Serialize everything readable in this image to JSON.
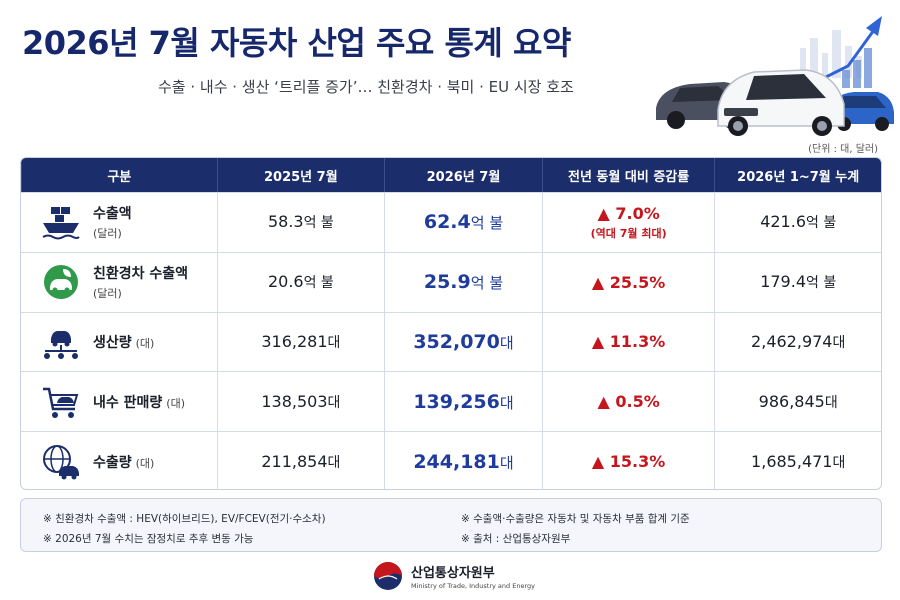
{
  "title": "2026년 7월 자동차 산업 주요 통계 요약",
  "subtitle": "수출 · 내수 · 생산 ‘트리플 증가’… 친환경차 · 북미 · EU 시장 호조",
  "unit_note": "(단위 : 대, 달러)",
  "table": {
    "headers": [
      "구분",
      "2025년 7월",
      "2026년 7월",
      "전년 동월 대비 증감률",
      "2026년 1~7월 누계"
    ],
    "rows": [
      {
        "icon": "ship-icon",
        "label": "수출액",
        "sub": "(달러)",
        "prev": "58.3",
        "prev_unit": "억 불",
        "curr": "62.4",
        "curr_unit": "억 불",
        "change": "▲ 7.0%",
        "change_note": "(역대 7월 최대)",
        "cum": "421.6",
        "cum_unit": "억 불"
      },
      {
        "icon": "eco-car-icon",
        "label": "친환경차 수출액",
        "sub": "(달러)",
        "prev": "20.6",
        "prev_unit": "억 불",
        "curr": "25.9",
        "curr_unit": "억 불",
        "change": "▲ 25.5%",
        "change_note": "",
        "cum": "179.4",
        "cum_unit": "억 불"
      },
      {
        "icon": "production-icon",
        "label": "생산량",
        "sub": "(대)",
        "prev": "316,281",
        "prev_unit": "대",
        "curr": "352,070",
        "curr_unit": "대",
        "change": "▲ 11.3%",
        "change_note": "",
        "cum": "2,462,974",
        "cum_unit": "대"
      },
      {
        "icon": "cart-car-icon",
        "label": "내수 판매량",
        "sub": "(대)",
        "prev": "138,503",
        "prev_unit": "대",
        "curr": "139,256",
        "curr_unit": "대",
        "change": "▲ 0.5%",
        "change_note": "",
        "cum": "986,845",
        "cum_unit": "대"
      },
      {
        "icon": "globe-car-icon",
        "label": "수출량",
        "sub": "(대)",
        "prev": "211,854",
        "prev_unit": "대",
        "curr": "244,181",
        "curr_unit": "대",
        "change": "▲ 15.3%",
        "change_note": "",
        "cum": "1,685,471",
        "cum_unit": "대"
      }
    ]
  },
  "notes": [
    "※  친환경차 수출액 : HEV(하이브리드), EV/FCEV(전기·수소차)",
    "※  수출액·수출량은 자동차 및 자동차 부품 합계 기준",
    "※  2026년 7월 수치는 잠정치로 추후 변동 가능",
    "※  출처 : 산업통상자원부"
  ],
  "footer": {
    "name": "산업통상자원부",
    "name_en": "Ministry of Trade, Industry and Energy"
  },
  "colors": {
    "navy": "#1b2e6b",
    "title": "#16286b",
    "highlight_blue": "#1f3b9c",
    "increase_red": "#c4161c"
  }
}
